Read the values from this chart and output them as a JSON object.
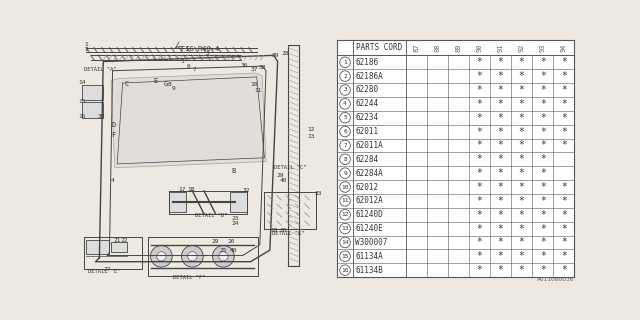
{
  "bg_color": "#ede8e0",
  "part_number_id": "A611000036",
  "header_years": [
    "87",
    "88",
    "89",
    "90",
    "91",
    "92",
    "93",
    "94"
  ],
  "rows": [
    {
      "num": "1",
      "code": "62186",
      "marks": [
        0,
        0,
        0,
        1,
        1,
        1,
        1,
        1
      ]
    },
    {
      "num": "2",
      "code": "62186A",
      "marks": [
        0,
        0,
        0,
        1,
        1,
        1,
        1,
        1
      ]
    },
    {
      "num": "3",
      "code": "62280",
      "marks": [
        0,
        0,
        0,
        1,
        1,
        1,
        1,
        1
      ]
    },
    {
      "num": "4",
      "code": "62244",
      "marks": [
        0,
        0,
        0,
        1,
        1,
        1,
        1,
        1
      ]
    },
    {
      "num": "5",
      "code": "62234",
      "marks": [
        0,
        0,
        0,
        1,
        1,
        1,
        1,
        1
      ]
    },
    {
      "num": "6",
      "code": "62011",
      "marks": [
        0,
        0,
        0,
        1,
        1,
        1,
        1,
        1
      ]
    },
    {
      "num": "7",
      "code": "62011A",
      "marks": [
        0,
        0,
        0,
        1,
        1,
        1,
        1,
        1
      ]
    },
    {
      "num": "8",
      "code": "62284",
      "marks": [
        0,
        0,
        0,
        1,
        1,
        1,
        1,
        0
      ]
    },
    {
      "num": "9",
      "code": "62284A",
      "marks": [
        0,
        0,
        0,
        1,
        1,
        1,
        1,
        0
      ]
    },
    {
      "num": "10",
      "code": "62012",
      "marks": [
        0,
        0,
        0,
        1,
        1,
        1,
        1,
        1
      ]
    },
    {
      "num": "11",
      "code": "62012A",
      "marks": [
        0,
        0,
        0,
        1,
        1,
        1,
        1,
        1
      ]
    },
    {
      "num": "12",
      "code": "61240D",
      "marks": [
        0,
        0,
        0,
        1,
        1,
        1,
        1,
        1
      ]
    },
    {
      "num": "13",
      "code": "61240E",
      "marks": [
        0,
        0,
        0,
        1,
        1,
        1,
        1,
        1
      ]
    },
    {
      "num": "14",
      "code": "W300007",
      "marks": [
        0,
        0,
        0,
        1,
        1,
        1,
        1,
        1
      ]
    },
    {
      "num": "15",
      "code": "61134A",
      "marks": [
        0,
        0,
        0,
        1,
        1,
        1,
        1,
        1
      ]
    },
    {
      "num": "16",
      "code": "61134B",
      "marks": [
        0,
        0,
        0,
        1,
        1,
        1,
        1,
        1
      ]
    }
  ],
  "line_color": "#444444",
  "text_color": "#333333",
  "table_line_color": "#555555"
}
